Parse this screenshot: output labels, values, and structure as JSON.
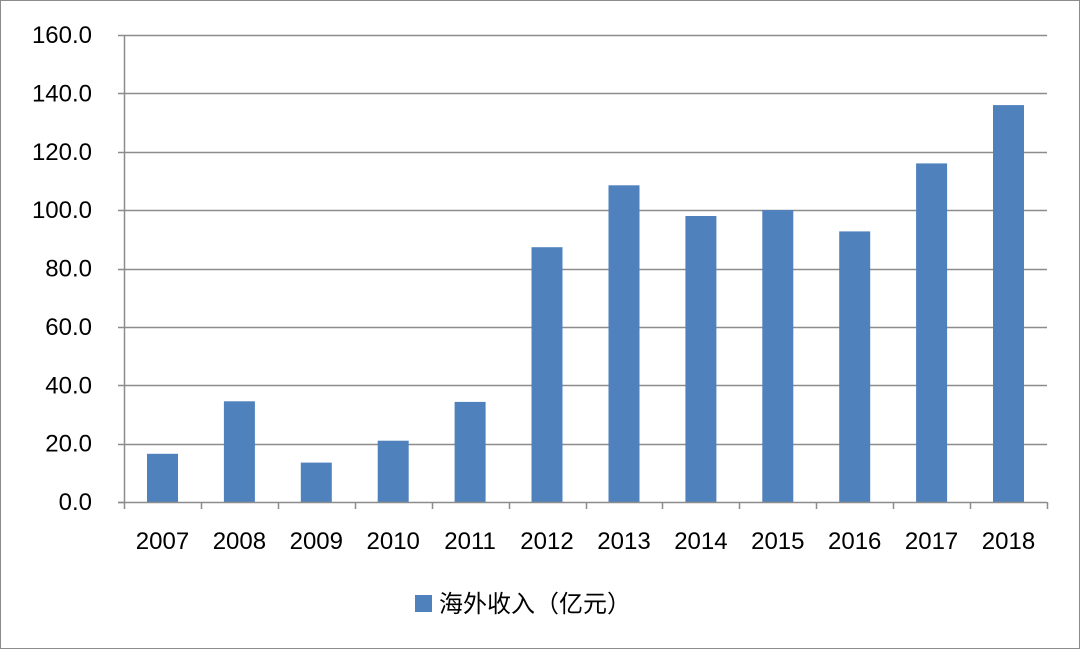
{
  "chart_data": {
    "type": "bar",
    "categories": [
      "2007",
      "2008",
      "2009",
      "2010",
      "2011",
      "2012",
      "2013",
      "2014",
      "2015",
      "2016",
      "2017",
      "2018"
    ],
    "series": [
      {
        "name": "海外收入（亿元）",
        "values": [
          16.5,
          34.5,
          13.5,
          21.0,
          34.3,
          87.3,
          108.5,
          98.0,
          100.0,
          92.7,
          116.0,
          136.0
        ]
      }
    ],
    "yticks": [
      "0.0",
      "20.0",
      "40.0",
      "60.0",
      "80.0",
      "100.0",
      "120.0",
      "140.0",
      "160.0"
    ],
    "ylim": [
      0,
      160
    ],
    "ystep": 20,
    "grid": true,
    "legend_position": "bottom",
    "title": "",
    "xlabel": "",
    "ylabel": "",
    "colors": {
      "bar": "#4f81bd",
      "grid": "#8c8c8c",
      "axis": "#8c8c8c"
    }
  }
}
